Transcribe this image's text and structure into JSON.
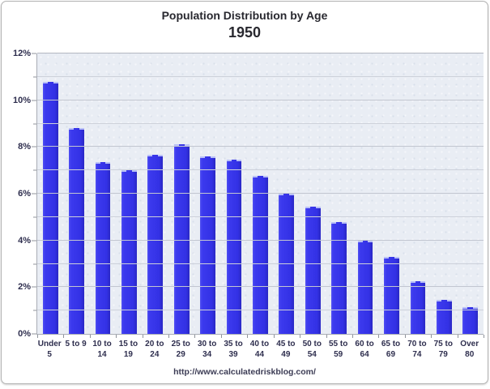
{
  "header": {
    "title": "Population Distribution by Age",
    "subtitle": "1950"
  },
  "footer": {
    "url": "http://www.calculatedriskblog.com/"
  },
  "colors": {
    "bar": "#3533EA",
    "bar_edge_dark": "#2A28C4",
    "bar_top_dash": "#B9C0F7",
    "plot_bg": "#E9EDF4",
    "gridline": "#CDD1DA",
    "axis": "#A9ADB5",
    "label_text": "#2E2E4E",
    "title_text": "#28282F",
    "frame_border": "#B3B3B3"
  },
  "chart_data": {
    "type": "bar",
    "title": "Population Distribution by Age",
    "subtitle": "1950",
    "categories": [
      "Under\n5",
      "5 to 9",
      "10 to\n14",
      "15 to\n19",
      "20 to\n24",
      "25 to\n29",
      "30 to\n34",
      "35 to\n39",
      "40 to\n44",
      "45 to\n49",
      "50 to\n54",
      "55 to\n59",
      "60 to\n64",
      "65 to\n69",
      "70 to\n74",
      "75 to\n79",
      "Over\n80"
    ],
    "values": [
      10.8,
      8.8,
      7.35,
      7.0,
      7.65,
      8.1,
      7.6,
      7.45,
      6.75,
      6.0,
      5.45,
      4.8,
      4.0,
      3.3,
      2.25,
      1.45,
      1.15
    ],
    "unit": "%",
    "xlabel": "",
    "ylabel": "",
    "ylim": [
      0,
      12
    ],
    "y_major_step": 2,
    "y_minor_step": 1,
    "yticks": [
      {
        "v": 0,
        "label": "0%"
      },
      {
        "v": 2,
        "label": "2%"
      },
      {
        "v": 4,
        "label": "4%"
      },
      {
        "v": 6,
        "label": "6%"
      },
      {
        "v": 8,
        "label": "8%"
      },
      {
        "v": 10,
        "label": "10%"
      },
      {
        "v": 12,
        "label": "12%"
      }
    ],
    "grid": "on",
    "legend": "none"
  }
}
